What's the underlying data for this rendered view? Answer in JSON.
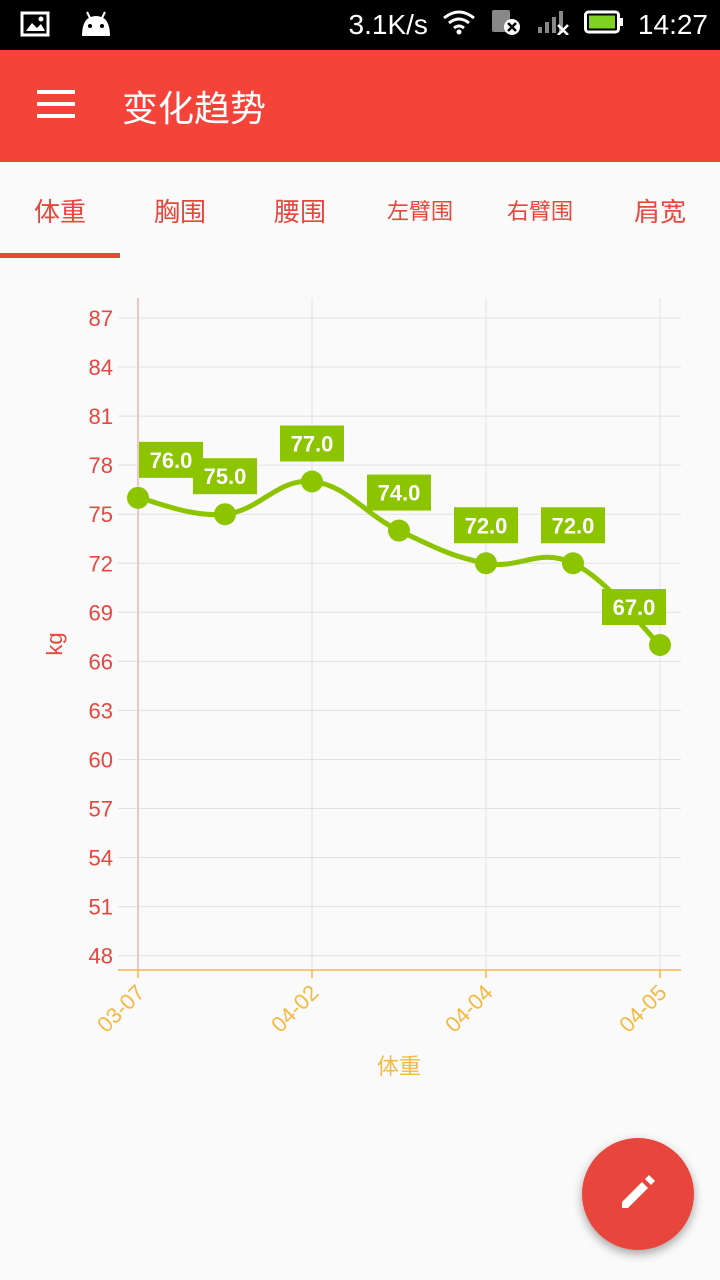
{
  "status_bar": {
    "net_speed": "3.1K/s",
    "time": "14:27",
    "icons": [
      "image-icon",
      "android-icon",
      "wifi-icon",
      "sim-off-icon",
      "signal-icon",
      "battery-icon"
    ]
  },
  "app_bar": {
    "title": "变化趋势",
    "menu_icon": "menu-icon",
    "color": "#f4443a"
  },
  "tabs": [
    {
      "label": "体重",
      "selected": true
    },
    {
      "label": "胸围",
      "selected": false
    },
    {
      "label": "腰围",
      "selected": false
    },
    {
      "label": "左臂围",
      "selected": false
    },
    {
      "label": "右臂围",
      "selected": false
    },
    {
      "label": "肩宽",
      "selected": false
    }
  ],
  "chart_data": {
    "type": "line",
    "x": [
      "03-07",
      "",
      "04-02",
      "",
      "04-04",
      "",
      "04-05"
    ],
    "tick_labels": [
      "03-07",
      "04-02",
      "04-04",
      "04-05"
    ],
    "series": [
      {
        "values": [
          76.0,
          75.0,
          77.0,
          74.0,
          72.0,
          72.0,
          67.0
        ],
        "color": "#8cc400"
      }
    ],
    "data_labels": [
      "76.0",
      "75.0",
      "77.0",
      "74.0",
      "72.0",
      "72.0",
      "67.0"
    ],
    "yticks": [
      87,
      84,
      81,
      78,
      75,
      72,
      69,
      66,
      63,
      60,
      57,
      54,
      51,
      48
    ],
    "ylim": [
      46.5,
      87
    ],
    "ylabel": "kg",
    "xlabel": "体重",
    "grid": true,
    "y_axis_color": "#e8453c",
    "x_axis_color": "#f5b942"
  },
  "fab": {
    "icon": "pencil-icon",
    "color": "#e8453c"
  }
}
